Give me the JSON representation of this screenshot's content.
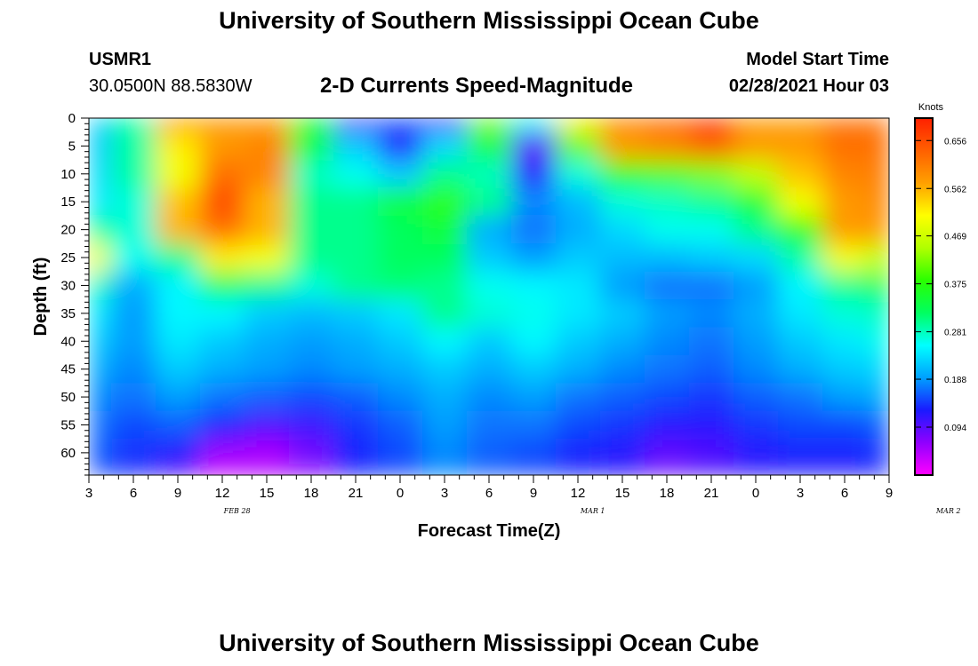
{
  "header": {
    "title": "University of Southern Mississippi Ocean Cube",
    "station_id": "USMR1",
    "station_coords": "30.0500N 88.5830W",
    "subtitle": "2-D Currents Speed-Magnitude",
    "model_start_label": "Model Start Time",
    "model_start_value": "02/28/2021 Hour 03"
  },
  "footer": {
    "title": "University of Southern Mississippi Ocean Cube"
  },
  "chart_data": {
    "type": "heatmap",
    "title": "2-D Currents Speed-Magnitude",
    "xlabel": "Forecast Time(Z)",
    "ylabel": "Depth (ft)",
    "colorbar_label": "Knots",
    "x_tick_labels": [
      "3",
      "6",
      "9",
      "12",
      "15",
      "18",
      "21",
      "0",
      "3",
      "6",
      "9",
      "12",
      "15",
      "18",
      "21",
      "0",
      "3",
      "6",
      "9"
    ],
    "x_date_labels": [
      {
        "label": "FEB 28",
        "at_hour": 13
      },
      {
        "label": "MAR 1",
        "at_hour": 37
      },
      {
        "label": "MAR 2",
        "at_hour": 61
      }
    ],
    "x_hours_range": [
      3,
      57
    ],
    "ylim": [
      0,
      64
    ],
    "y_ticks": [
      0,
      5,
      10,
      15,
      20,
      25,
      30,
      35,
      40,
      45,
      50,
      55,
      60
    ],
    "colorbar_ticks": [
      0.656,
      0.562,
      0.469,
      0.375,
      0.281,
      0.188,
      0.094
    ],
    "value_range": [
      0.0,
      0.7
    ],
    "colormap_colors": [
      "#ff00ff",
      "#9000ff",
      "#1a1aff",
      "#00a0ff",
      "#00ffff",
      "#00ff60",
      "#2aff00",
      "#b0ff00",
      "#ffff00",
      "#ffa000",
      "#ff6000",
      "#ff2000"
    ],
    "x_hours": [
      3,
      6,
      9,
      12,
      15,
      18,
      21,
      24,
      27,
      30,
      33,
      36,
      39,
      42,
      45,
      48,
      51,
      54,
      57
    ],
    "depths": [
      0,
      5,
      10,
      15,
      20,
      25,
      30,
      35,
      40,
      45,
      50,
      55,
      60,
      64
    ],
    "speed_knots": [
      [
        0.22,
        0.29,
        0.58,
        0.58,
        0.58,
        0.36,
        0.1,
        0.16,
        0.1,
        0.42,
        0.26,
        0.52,
        0.6,
        0.63,
        0.68,
        0.58,
        0.58,
        0.62,
        0.62
      ],
      [
        0.22,
        0.29,
        0.52,
        0.58,
        0.6,
        0.33,
        0.22,
        0.12,
        0.23,
        0.34,
        0.09,
        0.41,
        0.58,
        0.6,
        0.64,
        0.58,
        0.58,
        0.62,
        0.62
      ],
      [
        0.23,
        0.29,
        0.5,
        0.62,
        0.6,
        0.28,
        0.26,
        0.22,
        0.3,
        0.28,
        0.12,
        0.27,
        0.38,
        0.4,
        0.42,
        0.46,
        0.55,
        0.6,
        0.61
      ],
      [
        0.24,
        0.27,
        0.55,
        0.66,
        0.56,
        0.3,
        0.3,
        0.34,
        0.38,
        0.3,
        0.18,
        0.21,
        0.27,
        0.28,
        0.3,
        0.35,
        0.5,
        0.58,
        0.6
      ],
      [
        0.3,
        0.27,
        0.56,
        0.62,
        0.56,
        0.3,
        0.3,
        0.32,
        0.34,
        0.2,
        0.17,
        0.2,
        0.23,
        0.26,
        0.26,
        0.3,
        0.38,
        0.58,
        0.58
      ],
      [
        0.5,
        0.26,
        0.3,
        0.52,
        0.5,
        0.3,
        0.3,
        0.32,
        0.32,
        0.22,
        0.19,
        0.22,
        0.21,
        0.21,
        0.22,
        0.23,
        0.29,
        0.5,
        0.45
      ],
      [
        0.28,
        0.2,
        0.25,
        0.32,
        0.3,
        0.27,
        0.3,
        0.31,
        0.3,
        0.26,
        0.25,
        0.24,
        0.19,
        0.17,
        0.17,
        0.19,
        0.25,
        0.3,
        0.35
      ],
      [
        0.24,
        0.19,
        0.25,
        0.25,
        0.22,
        0.21,
        0.22,
        0.24,
        0.3,
        0.27,
        0.26,
        0.24,
        0.22,
        0.19,
        0.18,
        0.2,
        0.24,
        0.27,
        0.28
      ],
      [
        0.22,
        0.19,
        0.24,
        0.22,
        0.2,
        0.19,
        0.2,
        0.22,
        0.25,
        0.22,
        0.25,
        0.22,
        0.2,
        0.18,
        0.17,
        0.19,
        0.22,
        0.24,
        0.26
      ],
      [
        0.2,
        0.18,
        0.22,
        0.2,
        0.19,
        0.18,
        0.19,
        0.2,
        0.22,
        0.2,
        0.22,
        0.2,
        0.18,
        0.17,
        0.16,
        0.18,
        0.2,
        0.22,
        0.23
      ],
      [
        0.18,
        0.17,
        0.19,
        0.17,
        0.16,
        0.15,
        0.16,
        0.18,
        0.2,
        0.18,
        0.19,
        0.17,
        0.16,
        0.15,
        0.14,
        0.16,
        0.17,
        0.19,
        0.2
      ],
      [
        0.17,
        0.15,
        0.16,
        0.13,
        0.1,
        0.11,
        0.14,
        0.16,
        0.19,
        0.17,
        0.17,
        0.15,
        0.14,
        0.12,
        0.12,
        0.14,
        0.15,
        0.15,
        0.16
      ],
      [
        0.16,
        0.14,
        0.12,
        0.06,
        0.05,
        0.08,
        0.13,
        0.15,
        0.18,
        0.16,
        0.15,
        0.13,
        0.12,
        0.09,
        0.1,
        0.12,
        0.13,
        0.13,
        0.14
      ],
      [
        0.15,
        0.13,
        0.1,
        0.03,
        0.04,
        0.07,
        0.13,
        0.15,
        0.18,
        0.16,
        0.15,
        0.13,
        0.12,
        0.08,
        0.1,
        0.12,
        0.12,
        0.12,
        0.13
      ]
    ]
  }
}
